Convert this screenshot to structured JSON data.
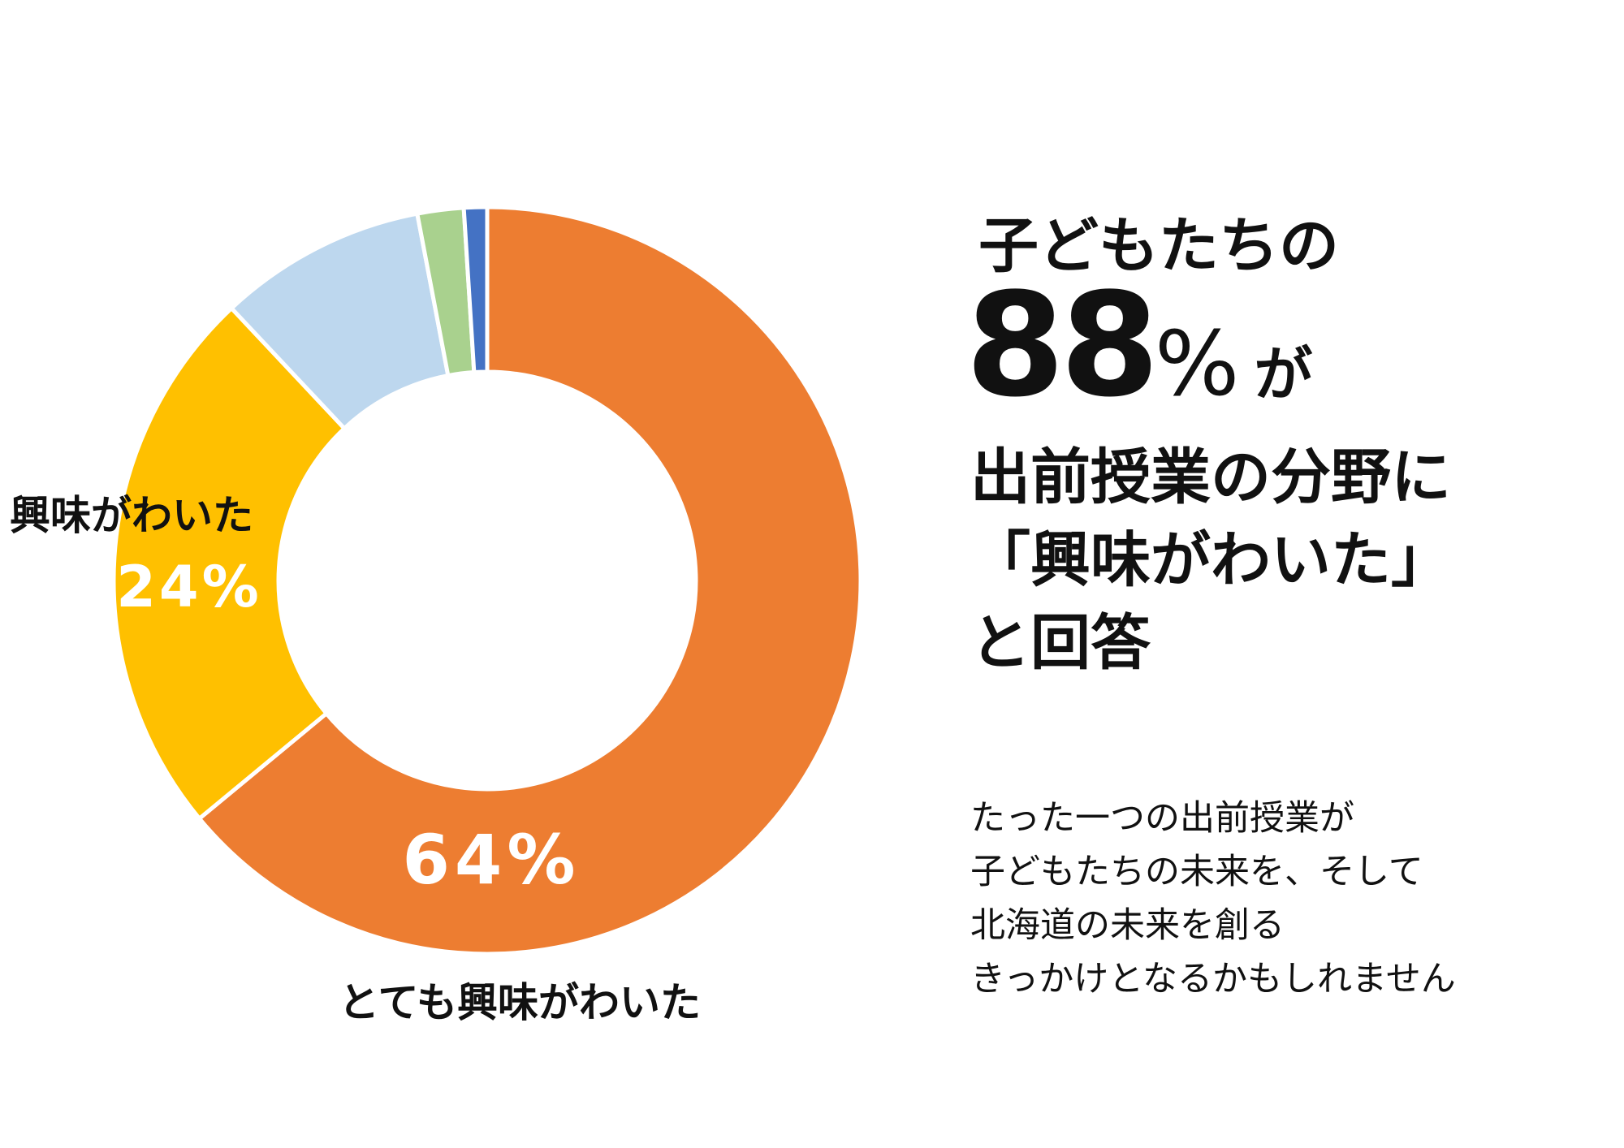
{
  "chart_data": {
    "type": "pie",
    "variant": "donut",
    "categories": [
      "とても興味がわいた",
      "興味がわいた",
      "",
      "",
      ""
    ],
    "values": [
      64,
      24,
      9,
      2,
      1
    ],
    "colors": [
      "#ED7D31",
      "#FFC000",
      "#BDD7EE",
      "#A9D18E",
      "#4472C4"
    ],
    "data_labels": [
      "64%",
      "24%",
      "",
      "",
      ""
    ],
    "legend": "none"
  },
  "headline": {
    "line1": "子どもたちの",
    "percent_value": "88",
    "percent_sign": "%",
    "particle": "が",
    "line3": "出前授業の分野に",
    "line4": "「興味がわいた」",
    "line5": "と回答"
  },
  "body_text": {
    "line1": "たった一つの出前授業が",
    "line2": "子どもたちの未来を、そして",
    "line3": "北海道の未来を創る",
    "line4": "きっかけとなるかもしれません"
  }
}
